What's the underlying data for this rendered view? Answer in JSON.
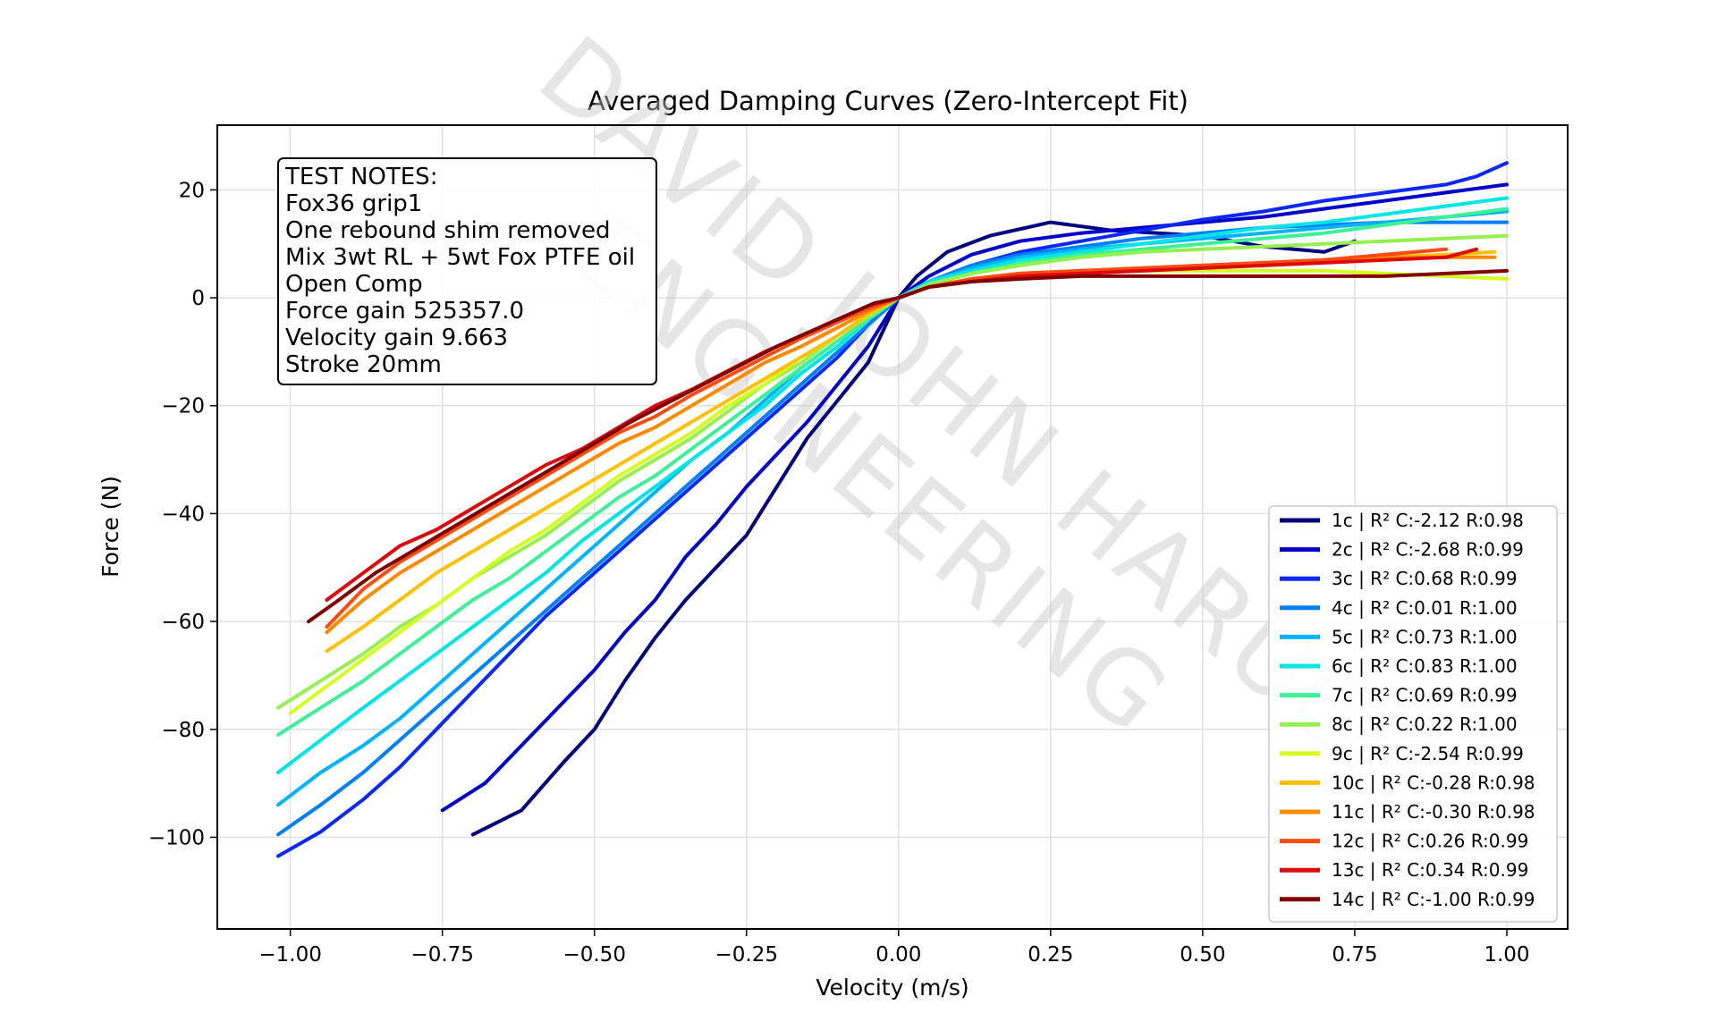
{
  "chart_data": {
    "type": "line",
    "title": "Averaged Damping Curves (Zero-Intercept Fit)",
    "xlabel": "Velocity (m/s)",
    "ylabel": "Force (N)",
    "xlim": [
      -1.12,
      1.1
    ],
    "ylim": [
      -117,
      32
    ],
    "xticks": [
      -1.0,
      -0.75,
      -0.5,
      -0.25,
      0.0,
      0.25,
      0.5,
      0.75,
      1.0
    ],
    "xtick_labels": [
      "−1.00",
      "−0.75",
      "−0.50",
      "−0.25",
      "0.00",
      "0.25",
      "0.50",
      "0.75",
      "1.00"
    ],
    "yticks": [
      20,
      0,
      -20,
      -40,
      -60,
      -80,
      -100
    ],
    "ytick_labels": [
      "20",
      "0",
      "−20",
      "−40",
      "−60",
      "−80",
      "−100"
    ],
    "grid": true,
    "legend_position": "lower-right",
    "notes": {
      "lines": [
        "TEST NOTES:",
        "Fox36 grip1",
        "One rebound shim removed",
        "Mix 3wt RL + 5wt Fox PTFE oil",
        "Open Comp",
        "Force gain 525357.0",
        "Velocity gain 9.663",
        "Stroke 20mm"
      ]
    },
    "watermark": {
      "line1": "DAVID JOHN HARUCH",
      "line2": "ENGINEERING"
    },
    "series": [
      {
        "name": "1c | R² C:-2.12 R:0.98",
        "color": "#000080",
        "x": [
          -0.7,
          -0.62,
          -0.55,
          -0.5,
          -0.45,
          -0.4,
          -0.35,
          -0.3,
          -0.25,
          -0.2,
          -0.15,
          -0.1,
          -0.05,
          0.0,
          0.03,
          0.08,
          0.15,
          0.25,
          0.35,
          0.5,
          0.6,
          0.7,
          0.75
        ],
        "y": [
          -99.5,
          -95,
          -86,
          -80,
          -71,
          -63,
          -56,
          -50,
          -44,
          -35,
          -26,
          -19,
          -12,
          0,
          4,
          8.5,
          11.5,
          14,
          12.5,
          11.5,
          9.5,
          8.5,
          10.5
        ]
      },
      {
        "name": "2c | R² C:-2.68 R:0.99",
        "color": "#0000cd",
        "x": [
          -0.75,
          -0.68,
          -0.62,
          -0.56,
          -0.5,
          -0.45,
          -0.4,
          -0.35,
          -0.3,
          -0.25,
          -0.2,
          -0.15,
          -0.1,
          -0.05,
          0.0,
          0.05,
          0.12,
          0.2,
          0.3,
          0.4,
          0.5,
          0.6,
          0.7,
          0.8,
          0.9,
          1.0
        ],
        "y": [
          -95,
          -90,
          -83,
          -76,
          -69,
          -62,
          -56,
          -48,
          -42,
          -35,
          -29,
          -23,
          -16,
          -9,
          0,
          4,
          8,
          10.5,
          12,
          13,
          14,
          15,
          16.5,
          18,
          19.5,
          21
        ]
      },
      {
        "name": "3c | R² C:0.68 R:0.99",
        "color": "#0a28ff",
        "x": [
          -1.02,
          -0.95,
          -0.88,
          -0.82,
          -0.76,
          -0.7,
          -0.64,
          -0.58,
          -0.52,
          -0.46,
          -0.4,
          -0.34,
          -0.28,
          -0.22,
          -0.16,
          -0.1,
          -0.05,
          0.0,
          0.05,
          0.12,
          0.2,
          0.3,
          0.4,
          0.5,
          0.6,
          0.7,
          0.8,
          0.9,
          0.95,
          1.0
        ],
        "y": [
          -103.5,
          -99,
          -93,
          -87,
          -80,
          -73,
          -66,
          -59,
          -53,
          -47,
          -41,
          -35,
          -29,
          -23,
          -17,
          -11,
          -5,
          0,
          3,
          6,
          8.5,
          10.5,
          12.5,
          14.5,
          16,
          18,
          19.5,
          21,
          22.5,
          25
        ]
      },
      {
        "name": "4c | R² C:0.01 R:1.00",
        "color": "#0080ff",
        "x": [
          -1.02,
          -0.95,
          -0.88,
          -0.82,
          -0.76,
          -0.7,
          -0.64,
          -0.58,
          -0.52,
          -0.46,
          -0.4,
          -0.34,
          -0.28,
          -0.22,
          -0.16,
          -0.1,
          -0.05,
          0.0,
          0.05,
          0.12,
          0.2,
          0.3,
          0.4,
          0.5,
          0.6,
          0.7,
          0.8,
          0.9,
          1.0
        ],
        "y": [
          -99.5,
          -94,
          -88,
          -82,
          -76,
          -70,
          -64,
          -58,
          -52,
          -46,
          -40,
          -34,
          -28,
          -22,
          -16,
          -10,
          -5,
          0,
          3,
          6,
          8,
          9.5,
          11,
          12,
          13,
          13.5,
          14,
          14,
          14
        ]
      },
      {
        "name": "5c | R² C:0.73 R:1.00",
        "color": "#00b4ff",
        "x": [
          -1.02,
          -0.95,
          -0.88,
          -0.82,
          -0.76,
          -0.7,
          -0.64,
          -0.58,
          -0.52,
          -0.46,
          -0.4,
          -0.34,
          -0.28,
          -0.22,
          -0.16,
          -0.1,
          -0.05,
          0.0,
          0.05,
          0.12,
          0.2,
          0.3,
          0.4,
          0.5,
          0.6,
          0.7,
          0.8,
          0.9,
          1.0
        ],
        "y": [
          -94,
          -88,
          -83,
          -78,
          -72,
          -66,
          -60,
          -54,
          -48,
          -42,
          -36,
          -30,
          -25,
          -19,
          -13,
          -8,
          -4,
          0,
          3,
          5.5,
          7.5,
          9,
          10,
          11,
          12,
          13,
          14,
          15,
          16
        ]
      },
      {
        "name": "6c | R² C:0.83 R:1.00",
        "color": "#00e6e6",
        "x": [
          -1.02,
          -0.95,
          -0.88,
          -0.82,
          -0.76,
          -0.7,
          -0.64,
          -0.58,
          -0.52,
          -0.46,
          -0.4,
          -0.34,
          -0.28,
          -0.22,
          -0.16,
          -0.1,
          -0.05,
          0.0,
          0.05,
          0.12,
          0.2,
          0.3,
          0.4,
          0.5,
          0.6,
          0.7,
          0.8,
          0.9,
          1.0
        ],
        "y": [
          -88,
          -82,
          -76,
          -71,
          -66,
          -61,
          -56,
          -51,
          -45,
          -40,
          -35,
          -30,
          -25,
          -20,
          -14,
          -9,
          -4,
          0,
          3,
          5,
          7,
          8.5,
          10,
          11.5,
          13,
          14,
          15.5,
          17,
          18.5
        ]
      },
      {
        "name": "7c | R² C:0.69 R:0.99",
        "color": "#3cf296",
        "x": [
          -1.02,
          -0.95,
          -0.88,
          -0.82,
          -0.76,
          -0.7,
          -0.64,
          -0.58,
          -0.52,
          -0.46,
          -0.4,
          -0.34,
          -0.28,
          -0.22,
          -0.16,
          -0.1,
          -0.05,
          0.0,
          0.05,
          0.12,
          0.2,
          0.3,
          0.4,
          0.5,
          0.6,
          0.7,
          0.8,
          0.9,
          1.0
        ],
        "y": [
          -81,
          -76,
          -71,
          -66,
          -61,
          -56,
          -52,
          -47,
          -42,
          -37,
          -33,
          -28,
          -23,
          -18,
          -13,
          -8,
          -4,
          0,
          2.5,
          4.5,
          6.5,
          8,
          9,
          10,
          11,
          12,
          13.5,
          15,
          16.5
        ]
      },
      {
        "name": "8c | R² C:0.22 R:1.00",
        "color": "#96f050",
        "x": [
          -1.02,
          -0.95,
          -0.88,
          -0.82,
          -0.76,
          -0.7,
          -0.64,
          -0.58,
          -0.52,
          -0.46,
          -0.4,
          -0.34,
          -0.28,
          -0.22,
          -0.16,
          -0.1,
          -0.05,
          0.0,
          0.05,
          0.12,
          0.2,
          0.3,
          0.4,
          0.5,
          0.6,
          0.7,
          0.8,
          0.9,
          1.0
        ],
        "y": [
          -76,
          -71,
          -66,
          -61,
          -57,
          -52,
          -48,
          -44,
          -39,
          -34,
          -30,
          -26,
          -21,
          -16,
          -12,
          -7,
          -3.5,
          0,
          2.5,
          4.5,
          6,
          7.5,
          8.5,
          9,
          9.5,
          10,
          10.5,
          11,
          11.5
        ]
      },
      {
        "name": "9c | R² C:-2.54 R:0.99",
        "color": "#d4ff1e",
        "x": [
          -1.0,
          -0.94,
          -0.88,
          -0.82,
          -0.76,
          -0.7,
          -0.64,
          -0.58,
          -0.52,
          -0.46,
          -0.4,
          -0.34,
          -0.28,
          -0.22,
          -0.16,
          -0.1,
          -0.05,
          0.0,
          0.05,
          0.12,
          0.2,
          0.3,
          0.4,
          0.5,
          0.6,
          0.7,
          0.8,
          0.9,
          1.0
        ],
        "y": [
          -77,
          -72,
          -67,
          -62,
          -57,
          -52,
          -47,
          -43,
          -38,
          -33,
          -29,
          -25,
          -20,
          -16,
          -11,
          -7,
          -3,
          0,
          2,
          3.5,
          4.5,
          5,
          5,
          5,
          5,
          5,
          4.5,
          4,
          3.5
        ]
      },
      {
        "name": "10c | R² C:-0.28 R:0.98",
        "color": "#ffc000",
        "x": [
          -0.94,
          -0.88,
          -0.82,
          -0.76,
          -0.7,
          -0.64,
          -0.58,
          -0.52,
          -0.46,
          -0.4,
          -0.34,
          -0.28,
          -0.22,
          -0.16,
          -0.1,
          -0.05,
          0.0,
          0.05,
          0.12,
          0.2,
          0.3,
          0.4,
          0.5,
          0.6,
          0.7,
          0.8,
          0.9,
          0.98
        ],
        "y": [
          -65.5,
          -61,
          -56,
          -51,
          -47,
          -43,
          -39,
          -35,
          -31,
          -27,
          -23,
          -19,
          -15,
          -11,
          -7,
          -3,
          0,
          2,
          3.5,
          4.5,
          5,
          5.5,
          6,
          6.5,
          7,
          7.5,
          8,
          8.5
        ]
      },
      {
        "name": "11c | R² C:-0.30 R:0.98",
        "color": "#ff8a00",
        "x": [
          -0.94,
          -0.88,
          -0.82,
          -0.76,
          -0.7,
          -0.64,
          -0.58,
          -0.52,
          -0.46,
          -0.4,
          -0.34,
          -0.28,
          -0.22,
          -0.16,
          -0.1,
          -0.05,
          0.0,
          0.05,
          0.12,
          0.2,
          0.3,
          0.4,
          0.5,
          0.6,
          0.7,
          0.8,
          0.9,
          0.98
        ],
        "y": [
          -62,
          -56,
          -51,
          -47,
          -43,
          -39,
          -35,
          -31,
          -27,
          -24,
          -20,
          -16,
          -12,
          -9,
          -5.5,
          -2.5,
          0,
          2,
          3.5,
          4.5,
          5,
          5.5,
          6,
          6.5,
          7,
          7.5,
          7.5,
          7.5
        ]
      },
      {
        "name": "12c | R² C:0.26 R:0.99",
        "color": "#ff4a12",
        "x": [
          -0.94,
          -0.88,
          -0.82,
          -0.76,
          -0.7,
          -0.64,
          -0.58,
          -0.52,
          -0.46,
          -0.4,
          -0.34,
          -0.28,
          -0.22,
          -0.16,
          -0.1,
          -0.05,
          0.0,
          0.05,
          0.12,
          0.2,
          0.3,
          0.4,
          0.5,
          0.6,
          0.7,
          0.8,
          0.9
        ],
        "y": [
          -61,
          -54,
          -49,
          -45,
          -41,
          -37,
          -33,
          -29,
          -25,
          -22,
          -18,
          -14.5,
          -11,
          -7.5,
          -4.5,
          -2,
          0,
          2,
          3.5,
          4.5,
          5,
          5.5,
          6,
          6.5,
          7,
          8,
          9
        ]
      },
      {
        "name": "13c | R² C:0.34 R:0.99",
        "color": "#dc0a0a",
        "x": [
          -0.94,
          -0.88,
          -0.82,
          -0.76,
          -0.7,
          -0.64,
          -0.58,
          -0.52,
          -0.46,
          -0.4,
          -0.34,
          -0.28,
          -0.22,
          -0.16,
          -0.1,
          -0.05,
          0.0,
          0.05,
          0.12,
          0.2,
          0.3,
          0.4,
          0.5,
          0.6,
          0.7,
          0.8,
          0.9,
          0.95
        ],
        "y": [
          -56,
          -51,
          -46,
          -43,
          -39,
          -35,
          -31,
          -28,
          -24,
          -20,
          -17,
          -13.5,
          -10,
          -7,
          -4,
          -1.5,
          0,
          2,
          3,
          4,
          4.5,
          5,
          5.5,
          6,
          6.5,
          7,
          7.5,
          9
        ]
      },
      {
        "name": "14c | R² C:-1.00 R:0.99",
        "color": "#800000",
        "x": [
          -0.97,
          -0.92,
          -0.86,
          -0.8,
          -0.74,
          -0.68,
          -0.62,
          -0.56,
          -0.5,
          -0.44,
          -0.38,
          -0.32,
          -0.26,
          -0.2,
          -0.14,
          -0.08,
          -0.04,
          0.0,
          0.05,
          0.12,
          0.2,
          0.3,
          0.4,
          0.5,
          0.6,
          0.7,
          0.8,
          0.9,
          1.0
        ],
        "y": [
          -60,
          -56,
          -51,
          -47,
          -43,
          -39,
          -35,
          -31,
          -27,
          -23,
          -19.5,
          -16,
          -12.5,
          -9,
          -6,
          -3,
          -1,
          0,
          2,
          3,
          3.5,
          4,
          4,
          4,
          4,
          4,
          4,
          4.5,
          5
        ]
      }
    ]
  }
}
